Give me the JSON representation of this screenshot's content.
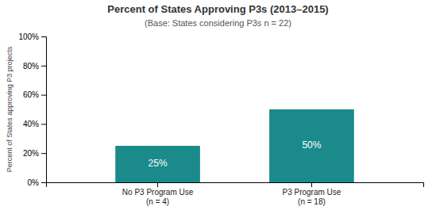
{
  "chart_data": {
    "type": "bar",
    "title": "Percent of States Approving P3s (2013–2015)",
    "subtitle": "(Base: States considering P3s n = 22)",
    "categories": [
      "No P3 Program Use\n(n = 4)",
      "P3 Program Use\n(n = 18)"
    ],
    "values": [
      25,
      50
    ],
    "value_labels": [
      "25%",
      "50%"
    ],
    "data_labels": true,
    "color": "#1a8a8a",
    "ylabel": "Percent of States approving P3 projects",
    "ylim": [
      0,
      100
    ],
    "yticks": [
      {
        "value": 0,
        "label": "0%"
      },
      {
        "value": 20,
        "label": "20%"
      },
      {
        "value": 40,
        "label": "40%"
      },
      {
        "value": 60,
        "label": "60%"
      },
      {
        "value": 80,
        "label": "80%"
      },
      {
        "value": 100,
        "label": "100%"
      }
    ],
    "grid": false
  }
}
